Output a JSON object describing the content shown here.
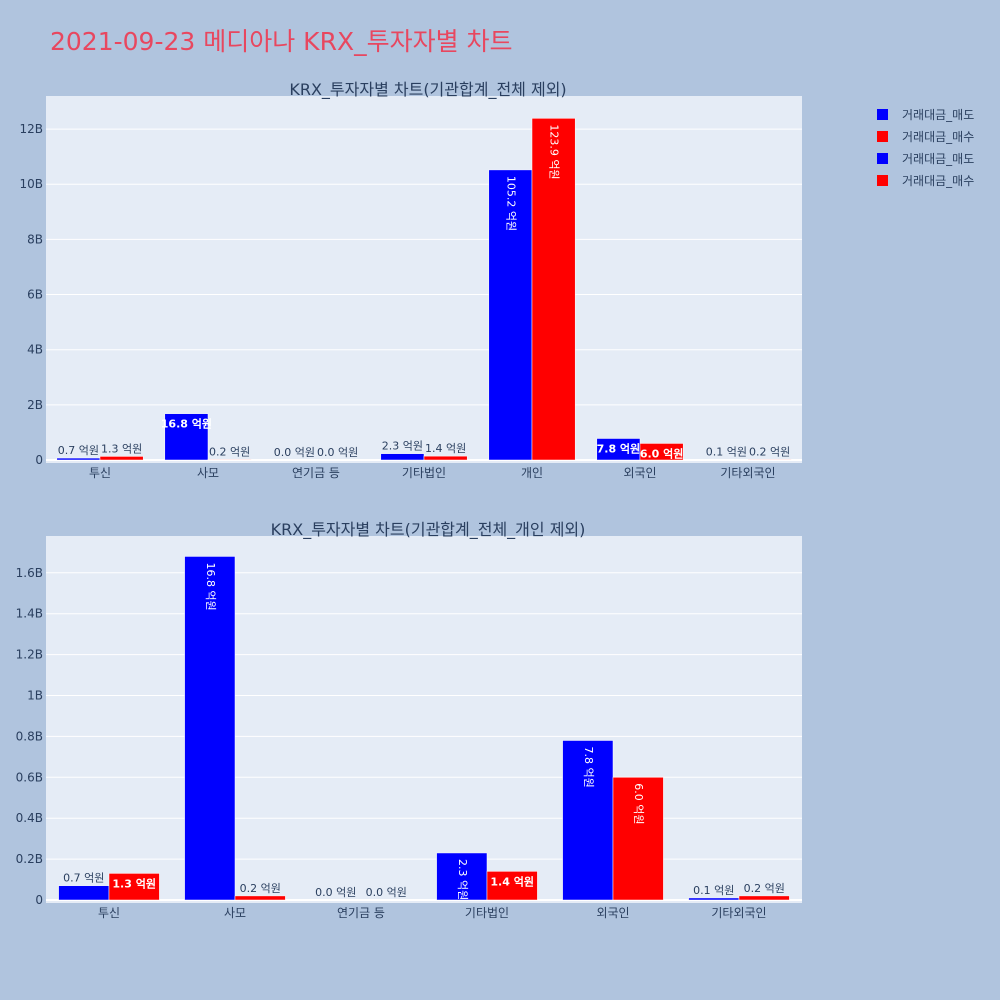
{
  "title": "2021-09-23 메디아나 KRX_투자자별 차트",
  "colors": {
    "sell": "#0000ff",
    "buy": "#ff0000",
    "plot_bg": "#e5ecf6",
    "page_bg": "#b0c4de",
    "title": "#e8475f"
  },
  "legend": [
    {
      "name": "거래대금_매도",
      "color": "#0000ff"
    },
    {
      "name": "거래대금_매수",
      "color": "#ff0000"
    },
    {
      "name": "거래대금_매도",
      "color": "#0000ff"
    },
    {
      "name": "거래대금_매수",
      "color": "#ff0000"
    }
  ],
  "chart_data": [
    {
      "type": "bar",
      "title": "KRX_투자자별 차트(기관합계_전체 제외)",
      "categories": [
        "투신",
        "사모",
        "연기금 등",
        "기타법인",
        "개인",
        "외국인",
        "기타외국인"
      ],
      "series": [
        {
          "name": "거래대금_매도",
          "values": [
            70000000,
            1680000000,
            0,
            230000000,
            10520000000,
            780000000,
            10000000
          ],
          "labels": [
            "0.7 억원",
            "16.8 억원",
            "0.0 억원",
            "2.3 억원",
            "105.2 억원",
            "7.8 억원",
            "0.1 억원"
          ]
        },
        {
          "name": "거래대금_매수",
          "values": [
            130000000,
            20000000,
            0,
            140000000,
            12390000000,
            600000000,
            20000000
          ],
          "labels": [
            "1.3 억원",
            "0.2 억원",
            "0.0 억원",
            "1.4 억원",
            "123.9 억원",
            "6.0 억원",
            "0.2 억원"
          ]
        }
      ],
      "ylim": [
        0,
        13200000000
      ],
      "yticks": [
        0,
        2000000000,
        4000000000,
        6000000000,
        8000000000,
        10000000000,
        12000000000
      ],
      "ytick_labels": [
        "0",
        "2B",
        "4B",
        "6B",
        "8B",
        "10B",
        "12B"
      ]
    },
    {
      "type": "bar",
      "title": "KRX_투자자별 차트(기관합계_전체_개인 제외)",
      "categories": [
        "투신",
        "사모",
        "연기금 등",
        "기타법인",
        "외국인",
        "기타외국인"
      ],
      "series": [
        {
          "name": "거래대금_매도",
          "values": [
            70000000,
            1680000000,
            0,
            230000000,
            780000000,
            10000000
          ],
          "labels": [
            "0.7 억원",
            "16.8 억원",
            "0.0 억원",
            "2.3 억원",
            "7.8 억원",
            "0.1 억원"
          ]
        },
        {
          "name": "거래대금_매수",
          "values": [
            130000000,
            20000000,
            0,
            140000000,
            600000000,
            20000000
          ],
          "labels": [
            "1.3 억원",
            "0.2 억원",
            "0.0 억원",
            "1.4 억원",
            "6.0 억원",
            "0.2 억원"
          ]
        }
      ],
      "ylim": [
        0,
        1780000000
      ],
      "yticks": [
        0,
        200000000,
        400000000,
        600000000,
        800000000,
        1000000000,
        1200000000,
        1400000000,
        1600000000
      ],
      "ytick_labels": [
        "0",
        "0.2B",
        "0.4B",
        "0.6B",
        "0.8B",
        "1B",
        "1.2B",
        "1.4B",
        "1.6B"
      ]
    }
  ]
}
